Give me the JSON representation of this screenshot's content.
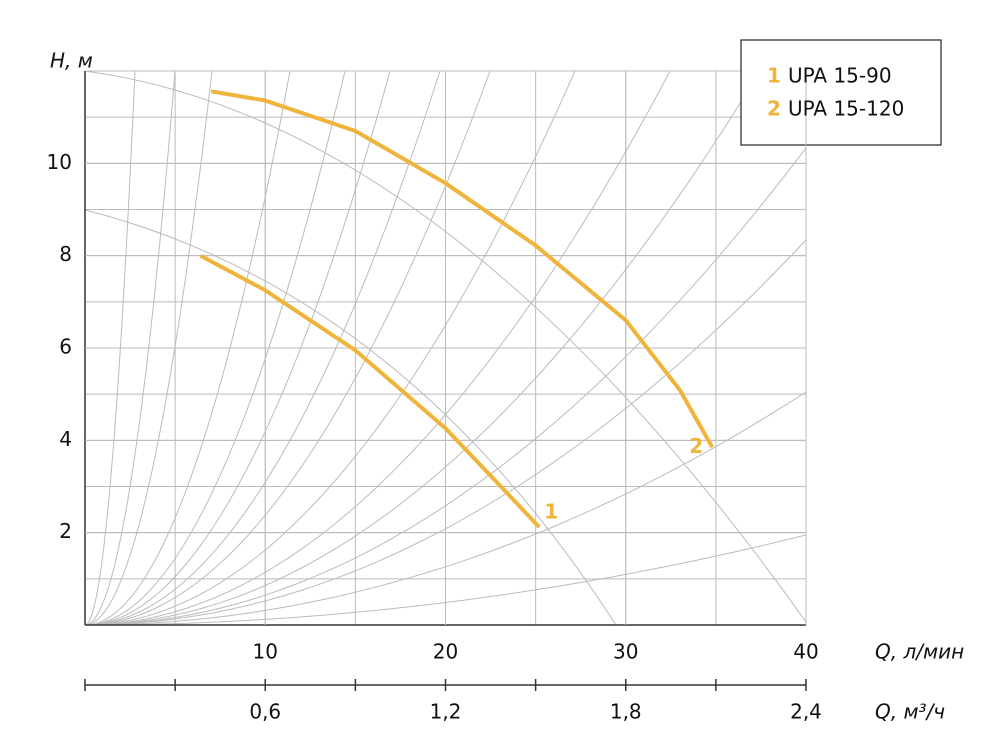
{
  "chart_data": {
    "type": "line",
    "y_label": "H, м",
    "x_label": "Q, л/мин",
    "x2_label": "Q, м³/ч",
    "xlim": [
      0,
      40
    ],
    "xticks": [
      10,
      20,
      30,
      40
    ],
    "ylim": [
      0,
      12
    ],
    "yticks": [
      2,
      4,
      6,
      8,
      10
    ],
    "x2lim": [
      0,
      2.4
    ],
    "x2ticks": [
      {
        "value": 0.6,
        "label": "0,6"
      },
      {
        "value": 1.2,
        "label": "1,2"
      },
      {
        "value": 1.8,
        "label": "1,8"
      },
      {
        "value": 2.4,
        "label": "2,4"
      }
    ],
    "grid": true,
    "legend": "top-right",
    "series": [
      {
        "label": "1",
        "name": "UPA 15-90",
        "color": "#f0b43c",
        "x": [
          6.4,
          10,
          15,
          20,
          23,
          25.2
        ],
        "values": [
          8.0,
          7.25,
          5.95,
          4.26,
          3.03,
          2.12
        ]
      },
      {
        "label": "2",
        "name": "UPA 15-120",
        "color": "#f0b43c",
        "x": [
          7.0,
          10,
          15,
          20,
          25,
          30,
          33,
          34.8
        ],
        "values": [
          11.56,
          11.36,
          10.7,
          9.57,
          8.22,
          6.6,
          5.09,
          3.85
        ]
      }
    ]
  }
}
